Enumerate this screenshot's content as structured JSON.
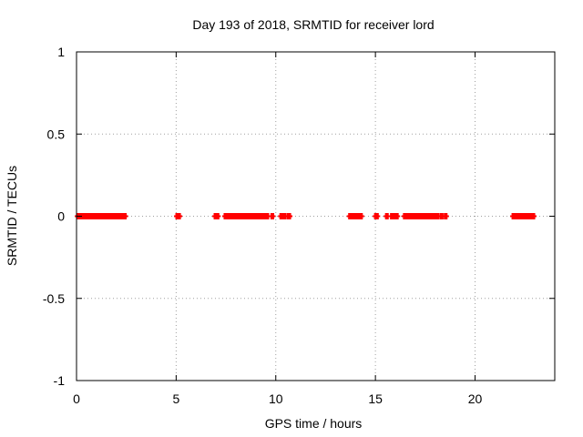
{
  "chart_data": {
    "type": "scatter",
    "title": "Day 193 of 2018, SRMTID for receiver lord",
    "xlabel": "GPS time / hours",
    "ylabel": "SRMTID / TECUs",
    "xlim": [
      0,
      24
    ],
    "ylim": [
      -1,
      1
    ],
    "xticks": [
      0,
      5,
      10,
      15,
      20
    ],
    "yticks": [
      1,
      0.5,
      0,
      -0.5,
      -1
    ],
    "xtick_labels": [
      "0",
      "5",
      "10",
      "15",
      "20"
    ],
    "ytick_labels": [
      "1",
      "0.5",
      "0",
      "-0.5",
      "-1"
    ],
    "grid": true,
    "marker": "plus",
    "series": [
      {
        "name": "SRMTID",
        "color": "#ff0000",
        "segments": [
          {
            "x_start": 0.05,
            "x_end": 2.45,
            "y": 0
          },
          {
            "x_start": 5.03,
            "x_end": 5.17,
            "y": 0
          },
          {
            "x_start": 6.95,
            "x_end": 7.1,
            "y": 0
          },
          {
            "x_start": 7.45,
            "x_end": 9.6,
            "y": 0
          },
          {
            "x_start": 9.8,
            "x_end": 9.85,
            "y": 0
          },
          {
            "x_start": 10.25,
            "x_end": 10.45,
            "y": 0
          },
          {
            "x_start": 10.6,
            "x_end": 10.7,
            "y": 0
          },
          {
            "x_start": 13.7,
            "x_end": 14.3,
            "y": 0
          },
          {
            "x_start": 15.0,
            "x_end": 15.1,
            "y": 0
          },
          {
            "x_start": 15.55,
            "x_end": 15.6,
            "y": 0
          },
          {
            "x_start": 15.8,
            "x_end": 16.1,
            "y": 0
          },
          {
            "x_start": 16.45,
            "x_end": 18.15,
            "y": 0
          },
          {
            "x_start": 18.3,
            "x_end": 18.35,
            "y": 0
          },
          {
            "x_start": 18.5,
            "x_end": 18.55,
            "y": 0
          },
          {
            "x_start": 21.9,
            "x_end": 22.95,
            "y": 0
          }
        ]
      }
    ]
  }
}
